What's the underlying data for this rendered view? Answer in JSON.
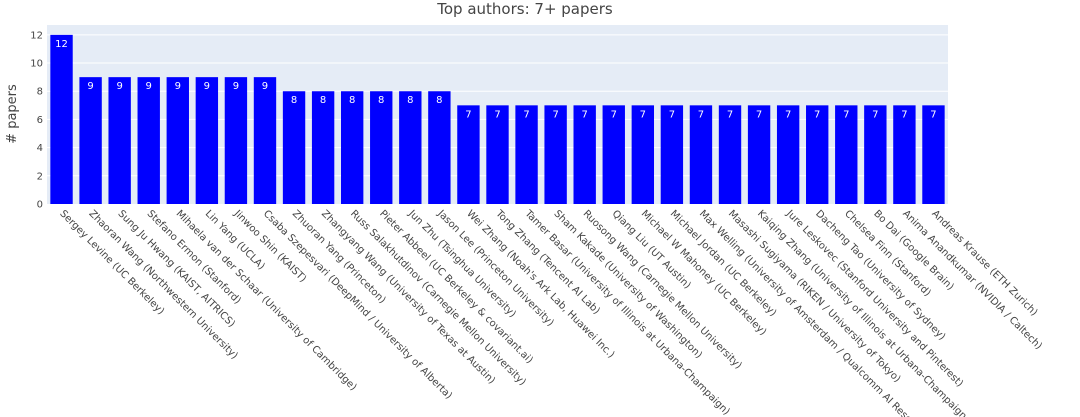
{
  "chart_data": {
    "type": "bar",
    "title": "Top authors: 7+ papers",
    "xlabel": "",
    "ylabel": "# papers",
    "ylim": [
      0,
      12.7
    ],
    "yticks": [
      0,
      2,
      4,
      6,
      8,
      10,
      12
    ],
    "grid": true,
    "bar_color": "#0000ff",
    "plot_bg": "#e5ecf6",
    "categories": [
      "Sergey Levine (UC Berkeley)",
      "Zhaoran Wang (Northwestern University)",
      "Sung Ju Hwang (KAIST, AITRICS)",
      "Stefano Ermon (Stanford)",
      "Mihaela van der Schaar (University of Cambridge)",
      "Lin Yang (UCLA)",
      "Jinwoo Shin (KAIST)",
      "Csaba Szepesvari (DeepMind / University of Alberta)",
      "Zhuoran Yang (Princeton)",
      "Zhangyang Wang (University of Texas at Austin)",
      "Russ Salakhutdinov (Carnegie Mellon University)",
      "Pieter Abbeel (UC Berkeley & covariant.ai)",
      "Jun Zhu (Tsinghua University)",
      "Jason Lee (Princeton University)",
      "Wei Zhang (Noah's Ark Lab, Huawei Inc.)",
      "Tong Zhang (Tencent AI Lab)",
      "Tamer Basar (University of Illinois at Urbana-Champaign)",
      "Sham Kakade (University of Washington)",
      "Ruosong Wang (Carnegie Mellon University)",
      "Qiang Liu (UT Austin)",
      "Michael W Mahoney (UC Berkeley)",
      "Michael Jordan (UC Berkeley)",
      "Max Welling (University of Amsterdam / Qualcomm AI Rese",
      "Masashi Sugiyama (RIKEN / University of Tokyo)",
      "Kaiqing Zhang (University of Illinois at Urbana-Champaign (",
      "Jure Leskovec (Stanford University and Pinterest)",
      "Dacheng Tao (University of Sydney)",
      "Chelsea Finn (Stanford)",
      "Bo Dai (Google Brain)",
      "Anima Anandkumar (NVIDIA / Caltech)",
      "Andreas Krause (ETH Zurich)"
    ],
    "values": [
      12,
      9,
      9,
      9,
      9,
      9,
      9,
      9,
      8,
      8,
      8,
      8,
      8,
      8,
      7,
      7,
      7,
      7,
      7,
      7,
      7,
      7,
      7,
      7,
      7,
      7,
      7,
      7,
      7,
      7,
      7
    ]
  }
}
